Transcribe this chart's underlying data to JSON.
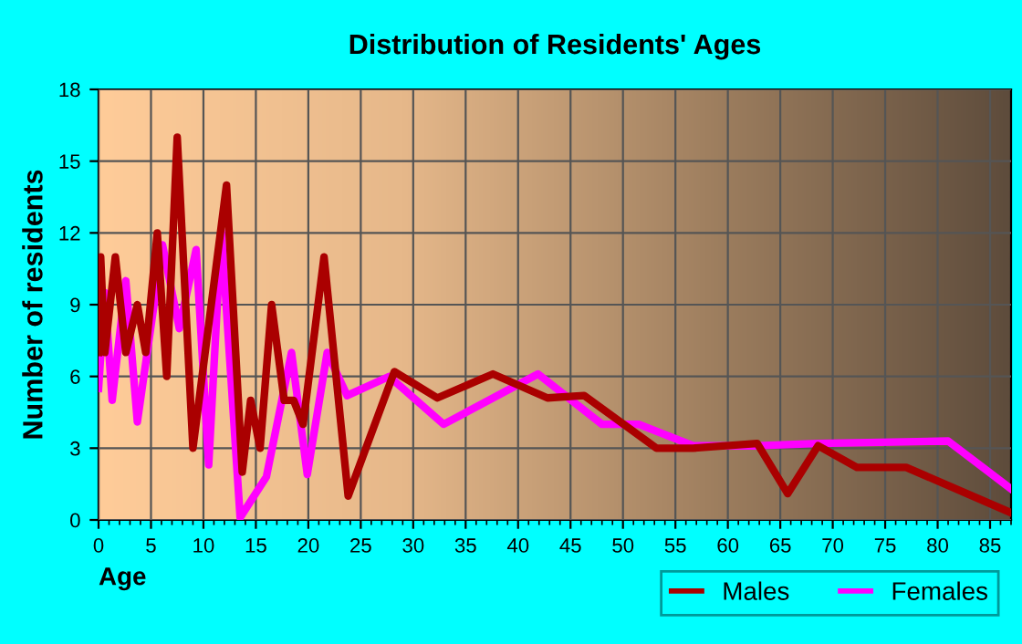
{
  "chart_data": {
    "type": "line",
    "title": "Distribution of Residents' Ages",
    "xlabel": "Age",
    "ylabel": "Number of residents",
    "xlim": [
      0,
      87
    ],
    "ylim": [
      0,
      18
    ],
    "xticks": [
      0,
      5,
      10,
      15,
      20,
      25,
      30,
      35,
      40,
      45,
      50,
      55,
      60,
      65,
      70,
      75,
      80,
      85
    ],
    "yticks": [
      0,
      3,
      6,
      9,
      12,
      15,
      18
    ],
    "grid": true,
    "legend": "bottom",
    "marker": "none",
    "line_style": "solid",
    "series": [
      {
        "name": "Males",
        "color": "#aa0000",
        "x": [
          0,
          0.2,
          0.6,
          1.6,
          2.6,
          3.7,
          4.5,
          5.6,
          6.5,
          7.5,
          9,
          12.2,
          13.7,
          14.5,
          15.4,
          16.5,
          17.7,
          18.6,
          19.5,
          21.5,
          23.8,
          28.2,
          32.3,
          37.6,
          42.8,
          46.3,
          53.2,
          56.7,
          62.8,
          65.7,
          68.6,
          72.3,
          77,
          87
        ],
        "values": [
          7,
          11,
          7,
          11,
          7,
          9,
          7,
          12,
          6,
          16,
          3,
          14,
          2,
          5,
          3,
          9,
          5,
          5,
          4,
          11,
          1,
          6.2,
          5.1,
          6.1,
          5.1,
          5.2,
          3,
          3,
          3.2,
          1.1,
          3.1,
          2.2,
          2.2,
          0.3
        ]
      },
      {
        "name": "Females",
        "color": "#ff00ff",
        "x": [
          0,
          0.6,
          1.3,
          2.6,
          3.7,
          6.1,
          7.7,
          9.3,
          10.5,
          11.7,
          13.5,
          16,
          18.4,
          19.9,
          21.8,
          23.7,
          27.7,
          32.9,
          41.9,
          48,
          51.5,
          56.7,
          62.8,
          68.6,
          81,
          87
        ],
        "values": [
          5.5,
          9.5,
          5,
          10,
          4.1,
          11.5,
          8,
          11.3,
          2.3,
          12.1,
          0.1,
          1.8,
          7,
          1.9,
          7,
          5.2,
          6,
          4,
          6.1,
          4,
          4,
          3.1,
          3.1,
          3.2,
          3.3,
          1.3
        ]
      }
    ]
  }
}
